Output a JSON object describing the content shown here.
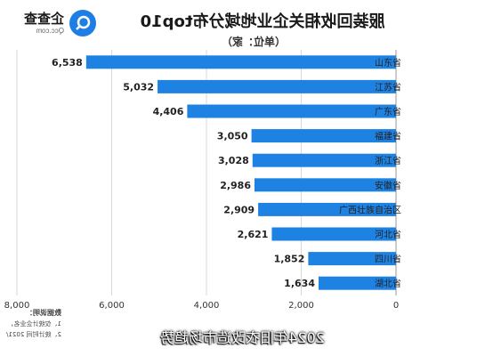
{
  "header": {
    "title": "服装回收相关企业地域分布top10",
    "unit": "（单位：家）",
    "logo_cn": "企查查",
    "logo_en": "Qcc.com"
  },
  "notes": {
    "title": "数据说明：",
    "lines": [
      "1、仅统计企业名，",
      "2、统计时间 2021/"
    ]
  },
  "caption": "2024年旧衣改造市场趋势",
  "colors": {
    "bar": "#1e82e3",
    "grid": "#d9d9d9",
    "text": "#222222"
  },
  "chart_data": {
    "type": "bar",
    "orientation": "horizontal",
    "title": "服装回收相关企业地域分布top10",
    "unit": "（单位：家）",
    "categories": [
      "山东省",
      "江苏省",
      "广东省",
      "福建省",
      "浙江省",
      "安徽省",
      "广西壮族自治区",
      "河北省",
      "四川省",
      "湖北省"
    ],
    "values": [
      6538,
      5032,
      4406,
      3050,
      3028,
      2986,
      2909,
      2621,
      1852,
      1634
    ],
    "value_labels": [
      "6,538",
      "5,032",
      "4,406",
      "3,050",
      "3,028",
      "2,986",
      "2,909",
      "2,621",
      "1,852",
      "1,634"
    ],
    "xticks": [
      "0",
      "2,000",
      "4,000",
      "6,000",
      "8,000"
    ],
    "xlim": [
      0,
      8000
    ],
    "grid": true
  }
}
